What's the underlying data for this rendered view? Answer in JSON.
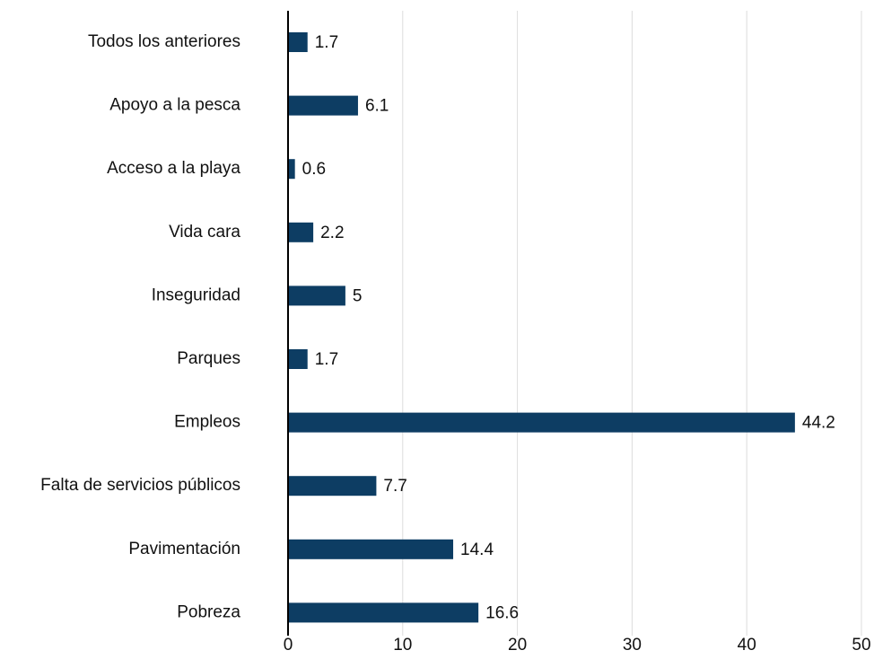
{
  "chart_data": {
    "type": "hbar",
    "categories": [
      "Todos los anteriores",
      "Apoyo a la pesca",
      "Acceso a la playa",
      "Vida cara",
      "Inseguridad",
      "Parques",
      "Empleos",
      "Falta de servicios públicos",
      "Pavimentación",
      "Pobreza"
    ],
    "values": [
      1.7,
      6.1,
      0.6,
      2.2,
      5,
      1.7,
      44.2,
      7.7,
      14.4,
      16.6
    ],
    "color": "#0d3d63",
    "xlim": [
      0,
      50
    ],
    "xticks": [
      0,
      10,
      20,
      30,
      40,
      50
    ],
    "grid": true
  }
}
